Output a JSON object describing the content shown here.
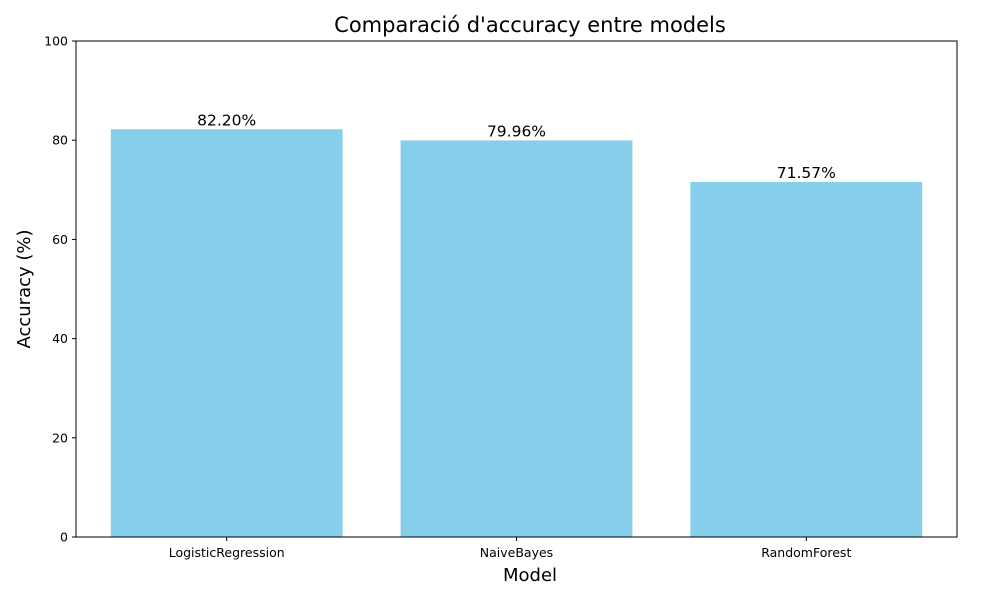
{
  "chart_data": {
    "type": "bar",
    "title": "Comparació d'accuracy entre models",
    "xlabel": "Model",
    "ylabel": "Accuracy (%)",
    "categories": [
      "LogisticRegression",
      "NaiveBayes",
      "RandomForest"
    ],
    "values": [
      82.2,
      79.96,
      71.57
    ],
    "data_labels": [
      "82.20%",
      "79.96%",
      "71.57%"
    ],
    "ylim": [
      0,
      100
    ],
    "yticks": [
      0,
      20,
      40,
      60,
      80,
      100
    ],
    "bar_color": "#87CEEB",
    "grid": false,
    "legend": "none"
  }
}
